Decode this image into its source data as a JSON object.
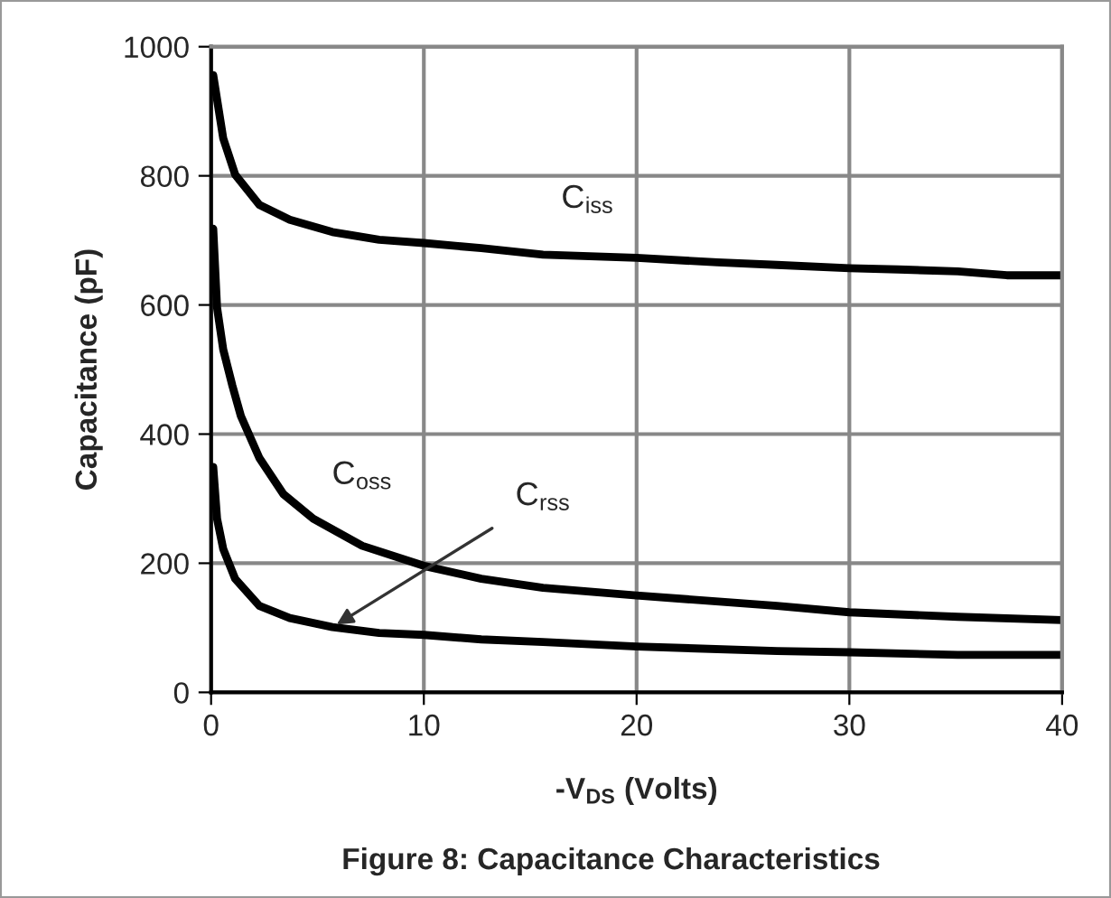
{
  "chart_data": {
    "type": "line",
    "xlabel": "-V$_{DS}$ (Volts)",
    "ylabel": "Capacitance (pF)",
    "xlim": [
      0,
      40
    ],
    "ylim": [
      0,
      1000
    ],
    "xticks": [
      0,
      10,
      20,
      30,
      40
    ],
    "yticks": [
      0,
      200,
      400,
      600,
      800,
      1000
    ],
    "grid": true,
    "line_style": "solid",
    "marker": "none",
    "series": [
      {
        "color": "#000000",
        "x": [
          0.1,
          0.57,
          1.13,
          2.27,
          3.7,
          5.7,
          7.9,
          10,
          12.7,
          15.6,
          20,
          23.8,
          26.6,
          30,
          32.3,
          35.1,
          37.4,
          40
        ],
        "values": [
          956,
          858,
          802,
          755,
          732,
          713,
          701,
          696,
          688,
          678,
          673,
          666,
          662,
          657,
          655,
          652,
          646,
          646
        ]
      },
      {
        "color": "#000000",
        "x": [
          0.1,
          0.28,
          0.57,
          1.0,
          1.4,
          2.27,
          3.4,
          4.8,
          7.1,
          10,
          12.7,
          15.6,
          20,
          26.6,
          30,
          35.1,
          40
        ],
        "values": [
          718,
          596,
          531,
          475,
          428,
          363,
          307,
          269,
          227,
          196,
          176,
          162,
          150,
          134,
          124,
          117,
          112
        ]
      },
      {
        "color": "#000000",
        "x": [
          0.1,
          0.28,
          0.57,
          1.13,
          2.27,
          3.7,
          5.7,
          7.9,
          10,
          12.7,
          15.6,
          20,
          26.6,
          30,
          35.1,
          40
        ],
        "values": [
          349,
          269,
          222,
          176,
          134,
          115,
          101,
          92,
          89,
          82,
          78,
          71,
          64,
          62,
          58,
          58
        ]
      }
    ],
    "annotations": [
      {
        "text": "C$_{iss}$",
        "x": 17.7,
        "y": 678
      },
      {
        "text": "C$_{oss}$",
        "x": 7.1,
        "y": 227
      },
      {
        "text": "C$_{rss}$",
        "x": 5.7,
        "y": 101
      },
      "Figure 8: Capacitance Characteristics"
    ]
  }
}
